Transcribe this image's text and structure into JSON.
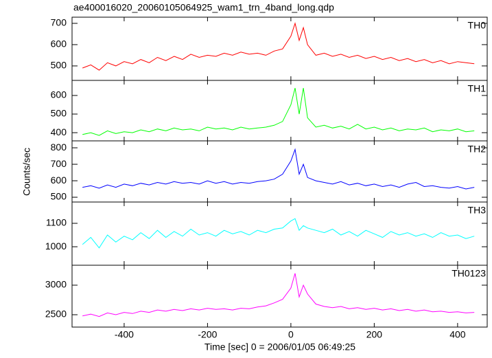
{
  "chart_data": {
    "type": "line",
    "title": "ae400016020_20060105064925_wam1_trn_4band_long.qdp",
    "x_label": "Time [sec] 0 = 2006/01/05 06:49:25",
    "y_label": "Counts/sec",
    "xlim": [
      -525,
      471
    ],
    "xticks": [
      -400,
      -200,
      0,
      200,
      400
    ],
    "x": [
      -500,
      -480,
      -460,
      -440,
      -420,
      -400,
      -380,
      -360,
      -340,
      -320,
      -300,
      -280,
      -260,
      -240,
      -220,
      -200,
      -180,
      -160,
      -140,
      -120,
      -100,
      -80,
      -60,
      -40,
      -20,
      0,
      10,
      20,
      30,
      40,
      60,
      80,
      100,
      120,
      140,
      160,
      180,
      200,
      220,
      240,
      260,
      280,
      300,
      320,
      340,
      360,
      380,
      400,
      420,
      440
    ],
    "panels": [
      {
        "name": "TH0",
        "color": "#ff0000",
        "ylim": [
          432,
          729
        ],
        "yticks": [
          500,
          600,
          700
        ],
        "values": [
          490,
          505,
          480,
          515,
          500,
          520,
          510,
          530,
          515,
          540,
          525,
          545,
          530,
          555,
          540,
          550,
          545,
          560,
          550,
          565,
          555,
          560,
          550,
          570,
          580,
          640,
          700,
          620,
          680,
          600,
          550,
          560,
          545,
          555,
          540,
          550,
          535,
          545,
          530,
          540,
          525,
          535,
          520,
          530,
          515,
          525,
          510,
          520,
          515,
          510
        ]
      },
      {
        "name": "TH1",
        "color": "#00ff00",
        "ylim": [
          356,
          681
        ],
        "yticks": [
          400,
          500,
          600
        ],
        "values": [
          390,
          400,
          385,
          410,
          395,
          405,
          400,
          415,
          405,
          420,
          410,
          425,
          415,
          420,
          410,
          430,
          420,
          425,
          415,
          430,
          420,
          425,
          430,
          440,
          460,
          550,
          640,
          500,
          640,
          480,
          430,
          440,
          425,
          435,
          420,
          445,
          420,
          430,
          415,
          425,
          410,
          420,
          415,
          425,
          405,
          415,
          410,
          420,
          405,
          410
        ]
      },
      {
        "name": "TH2",
        "color": "#0000ff",
        "ylim": [
          471,
          842
        ],
        "yticks": [
          500,
          600,
          700,
          800
        ],
        "values": [
          560,
          570,
          555,
          575,
          560,
          580,
          570,
          585,
          575,
          590,
          580,
          595,
          585,
          590,
          580,
          600,
          585,
          595,
          580,
          590,
          585,
          595,
          600,
          610,
          640,
          720,
          790,
          640,
          700,
          620,
          600,
          590,
          580,
          595,
          575,
          585,
          570,
          580,
          565,
          575,
          560,
          580,
          590,
          565,
          570,
          560,
          555,
          565,
          550,
          560
        ]
      },
      {
        "name": "TH3",
        "color": "#00ffff",
        "ylim": [
          921,
          1191
        ],
        "yticks": [
          1000,
          1100
        ],
        "values": [
          1010,
          1040,
          995,
          1050,
          1020,
          1045,
          1030,
          1060,
          1035,
          1070,
          1040,
          1065,
          1045,
          1075,
          1050,
          1060,
          1045,
          1070,
          1055,
          1065,
          1050,
          1070,
          1060,
          1075,
          1080,
          1110,
          1120,
          1070,
          1090,
          1080,
          1070,
          1060,
          1075,
          1050,
          1065,
          1045,
          1070,
          1055,
          1040,
          1065,
          1050,
          1060,
          1045,
          1055,
          1040,
          1060,
          1045,
          1050,
          1035,
          1045
        ]
      },
      {
        "name": "TH0123",
        "color": "#ff00ff",
        "ylim": [
          2291,
          3337
        ],
        "yticks": [
          2500,
          3000
        ],
        "values": [
          2480,
          2510,
          2470,
          2530,
          2500,
          2540,
          2520,
          2560,
          2540,
          2580,
          2560,
          2590,
          2570,
          2600,
          2580,
          2610,
          2590,
          2600,
          2580,
          2610,
          2600,
          2630,
          2650,
          2700,
          2760,
          2950,
          3200,
          2800,
          3000,
          2850,
          2680,
          2640,
          2620,
          2640,
          2600,
          2620,
          2590,
          2610,
          2580,
          2600,
          2570,
          2590,
          2560,
          2580,
          2550,
          2560,
          2540,
          2550,
          2530,
          2540
        ]
      }
    ]
  }
}
